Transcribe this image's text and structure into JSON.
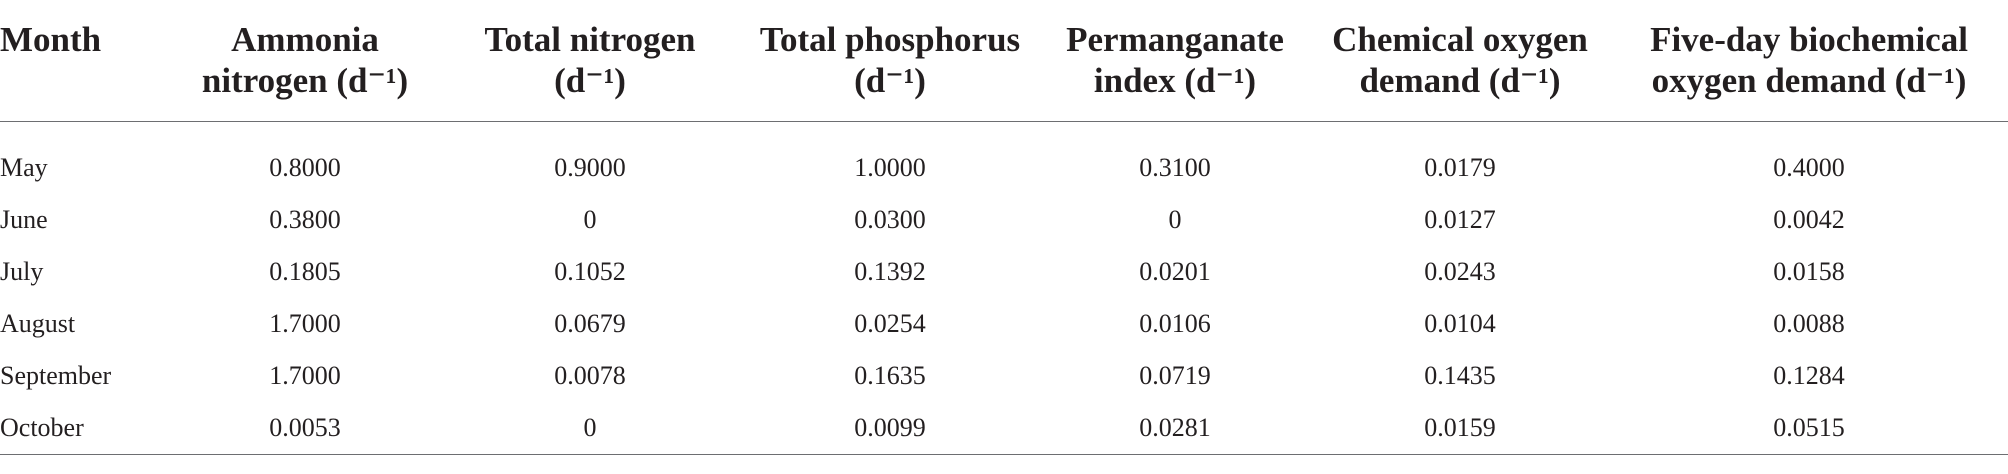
{
  "table": {
    "headers": [
      {
        "line1": "Month",
        "line2": ""
      },
      {
        "line1": "Ammonia",
        "line2": "nitrogen (d⁻¹)"
      },
      {
        "line1": "Total nitrogen",
        "line2": "(d⁻¹)"
      },
      {
        "line1": "Total phosphorus",
        "line2": "(d⁻¹)"
      },
      {
        "line1": "Permanganate",
        "line2": "index (d⁻¹)"
      },
      {
        "line1": "Chemical oxygen",
        "line2": "demand (d⁻¹)"
      },
      {
        "line1": "Five-day biochemical",
        "line2": "oxygen demand (d⁻¹)"
      }
    ],
    "rows": [
      [
        "May",
        "0.8000",
        "0.9000",
        "1.0000",
        "0.3100",
        "0.0179",
        "0.4000"
      ],
      [
        "June",
        "0.3800",
        "0",
        "0.0300",
        "0",
        "0.0127",
        "0.0042"
      ],
      [
        "July",
        "0.1805",
        "0.1052",
        "0.1392",
        "0.0201",
        "0.0243",
        "0.0158"
      ],
      [
        "August",
        "1.7000",
        "0.0679",
        "0.0254",
        "0.0106",
        "0.0104",
        "0.0088"
      ],
      [
        "September",
        "1.7000",
        "0.0078",
        "0.1635",
        "0.0719",
        "0.1435",
        "0.1284"
      ],
      [
        "October",
        "0.0053",
        "0",
        "0.0099",
        "0.0281",
        "0.0159",
        "0.0515"
      ]
    ]
  }
}
